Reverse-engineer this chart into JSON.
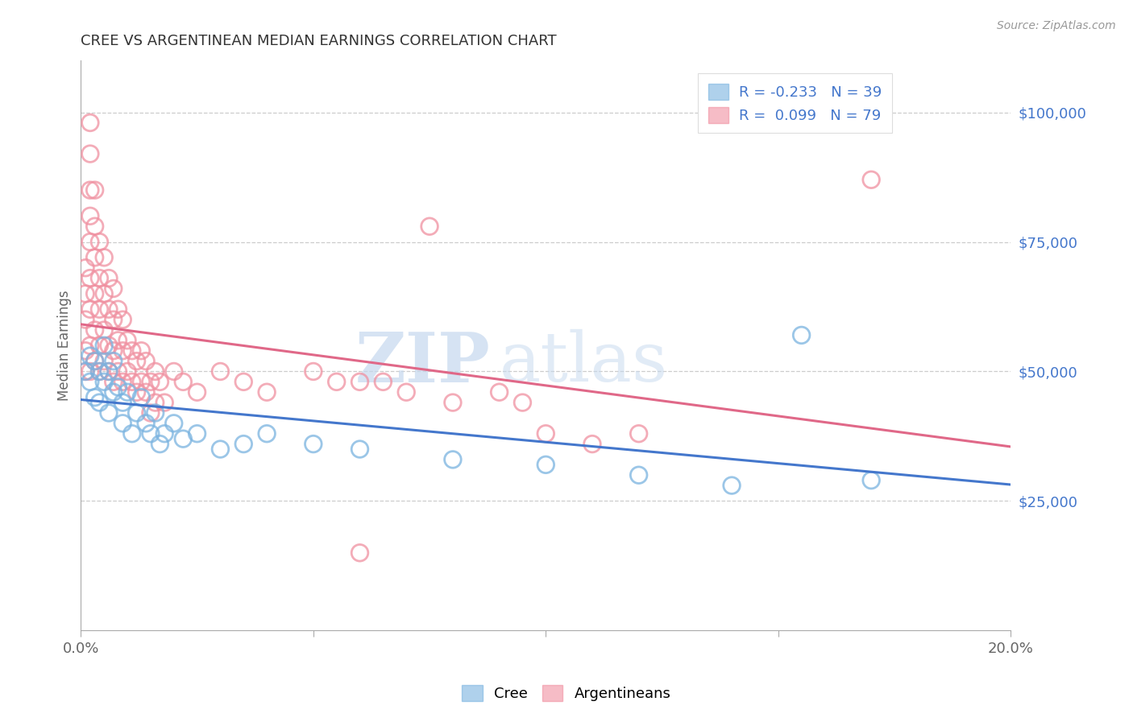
{
  "title": "CREE VS ARGENTINEAN MEDIAN EARNINGS CORRELATION CHART",
  "source": "Source: ZipAtlas.com",
  "ylabel_label": "Median Earnings",
  "xlim": [
    0.0,
    0.2
  ],
  "ylim": [
    0,
    110000
  ],
  "ytick_values": [
    25000,
    50000,
    75000,
    100000
  ],
  "ytick_labels": [
    "$25,000",
    "$50,000",
    "$75,000",
    "$100,000"
  ],
  "legend_r_cree": "-0.233",
  "legend_n_cree": "39",
  "legend_r_arg": "0.099",
  "legend_n_arg": "79",
  "cree_color": "#7ab3e0",
  "arg_color": "#f090a0",
  "cree_edge_color": "#5090c8",
  "arg_edge_color": "#e06878",
  "line_cree_color": "#4477cc",
  "line_arg_color": "#e06888",
  "tick_color": "#4477cc",
  "background_color": "#ffffff",
  "grid_color": "#cccccc",
  "watermark_zip": "ZIP",
  "watermark_atlas": "atlas",
  "watermark_color": "#c5d8ee",
  "cree_points": [
    [
      0.001,
      50000
    ],
    [
      0.002,
      48000
    ],
    [
      0.002,
      53000
    ],
    [
      0.003,
      45000
    ],
    [
      0.003,
      52000
    ],
    [
      0.004,
      50000
    ],
    [
      0.004,
      44000
    ],
    [
      0.005,
      48000
    ],
    [
      0.005,
      55000
    ],
    [
      0.006,
      50000
    ],
    [
      0.006,
      42000
    ],
    [
      0.007,
      52000
    ],
    [
      0.007,
      46000
    ],
    [
      0.008,
      47000
    ],
    [
      0.009,
      44000
    ],
    [
      0.009,
      40000
    ],
    [
      0.01,
      46000
    ],
    [
      0.011,
      38000
    ],
    [
      0.012,
      42000
    ],
    [
      0.013,
      45000
    ],
    [
      0.014,
      40000
    ],
    [
      0.015,
      38000
    ],
    [
      0.016,
      42000
    ],
    [
      0.017,
      36000
    ],
    [
      0.018,
      38000
    ],
    [
      0.02,
      40000
    ],
    [
      0.022,
      37000
    ],
    [
      0.025,
      38000
    ],
    [
      0.03,
      35000
    ],
    [
      0.035,
      36000
    ],
    [
      0.04,
      38000
    ],
    [
      0.05,
      36000
    ],
    [
      0.06,
      35000
    ],
    [
      0.08,
      33000
    ],
    [
      0.1,
      32000
    ],
    [
      0.12,
      30000
    ],
    [
      0.14,
      28000
    ],
    [
      0.155,
      57000
    ],
    [
      0.17,
      29000
    ]
  ],
  "arg_points": [
    [
      0.001,
      50000
    ],
    [
      0.001,
      54000
    ],
    [
      0.001,
      60000
    ],
    [
      0.001,
      65000
    ],
    [
      0.001,
      70000
    ],
    [
      0.002,
      50000
    ],
    [
      0.002,
      55000
    ],
    [
      0.002,
      62000
    ],
    [
      0.002,
      68000
    ],
    [
      0.002,
      75000
    ],
    [
      0.002,
      80000
    ],
    [
      0.002,
      85000
    ],
    [
      0.002,
      92000
    ],
    [
      0.002,
      98000
    ],
    [
      0.003,
      52000
    ],
    [
      0.003,
      58000
    ],
    [
      0.003,
      65000
    ],
    [
      0.003,
      72000
    ],
    [
      0.003,
      78000
    ],
    [
      0.003,
      85000
    ],
    [
      0.004,
      50000
    ],
    [
      0.004,
      55000
    ],
    [
      0.004,
      62000
    ],
    [
      0.004,
      68000
    ],
    [
      0.004,
      75000
    ],
    [
      0.005,
      52000
    ],
    [
      0.005,
      58000
    ],
    [
      0.005,
      65000
    ],
    [
      0.005,
      72000
    ],
    [
      0.006,
      50000
    ],
    [
      0.006,
      55000
    ],
    [
      0.006,
      62000
    ],
    [
      0.006,
      68000
    ],
    [
      0.007,
      48000
    ],
    [
      0.007,
      54000
    ],
    [
      0.007,
      60000
    ],
    [
      0.007,
      66000
    ],
    [
      0.008,
      50000
    ],
    [
      0.008,
      56000
    ],
    [
      0.008,
      62000
    ],
    [
      0.009,
      48000
    ],
    [
      0.009,
      54000
    ],
    [
      0.009,
      60000
    ],
    [
      0.01,
      50000
    ],
    [
      0.01,
      56000
    ],
    [
      0.011,
      48000
    ],
    [
      0.011,
      54000
    ],
    [
      0.012,
      52000
    ],
    [
      0.012,
      46000
    ],
    [
      0.013,
      48000
    ],
    [
      0.013,
      54000
    ],
    [
      0.014,
      46000
    ],
    [
      0.014,
      52000
    ],
    [
      0.015,
      48000
    ],
    [
      0.015,
      42000
    ],
    [
      0.016,
      50000
    ],
    [
      0.016,
      44000
    ],
    [
      0.017,
      48000
    ],
    [
      0.018,
      44000
    ],
    [
      0.02,
      50000
    ],
    [
      0.022,
      48000
    ],
    [
      0.025,
      46000
    ],
    [
      0.03,
      50000
    ],
    [
      0.035,
      48000
    ],
    [
      0.04,
      46000
    ],
    [
      0.05,
      50000
    ],
    [
      0.055,
      48000
    ],
    [
      0.06,
      48000
    ],
    [
      0.065,
      48000
    ],
    [
      0.07,
      46000
    ],
    [
      0.075,
      78000
    ],
    [
      0.08,
      44000
    ],
    [
      0.09,
      46000
    ],
    [
      0.095,
      44000
    ],
    [
      0.1,
      38000
    ],
    [
      0.11,
      36000
    ],
    [
      0.12,
      38000
    ],
    [
      0.06,
      15000
    ],
    [
      0.17,
      87000
    ]
  ]
}
